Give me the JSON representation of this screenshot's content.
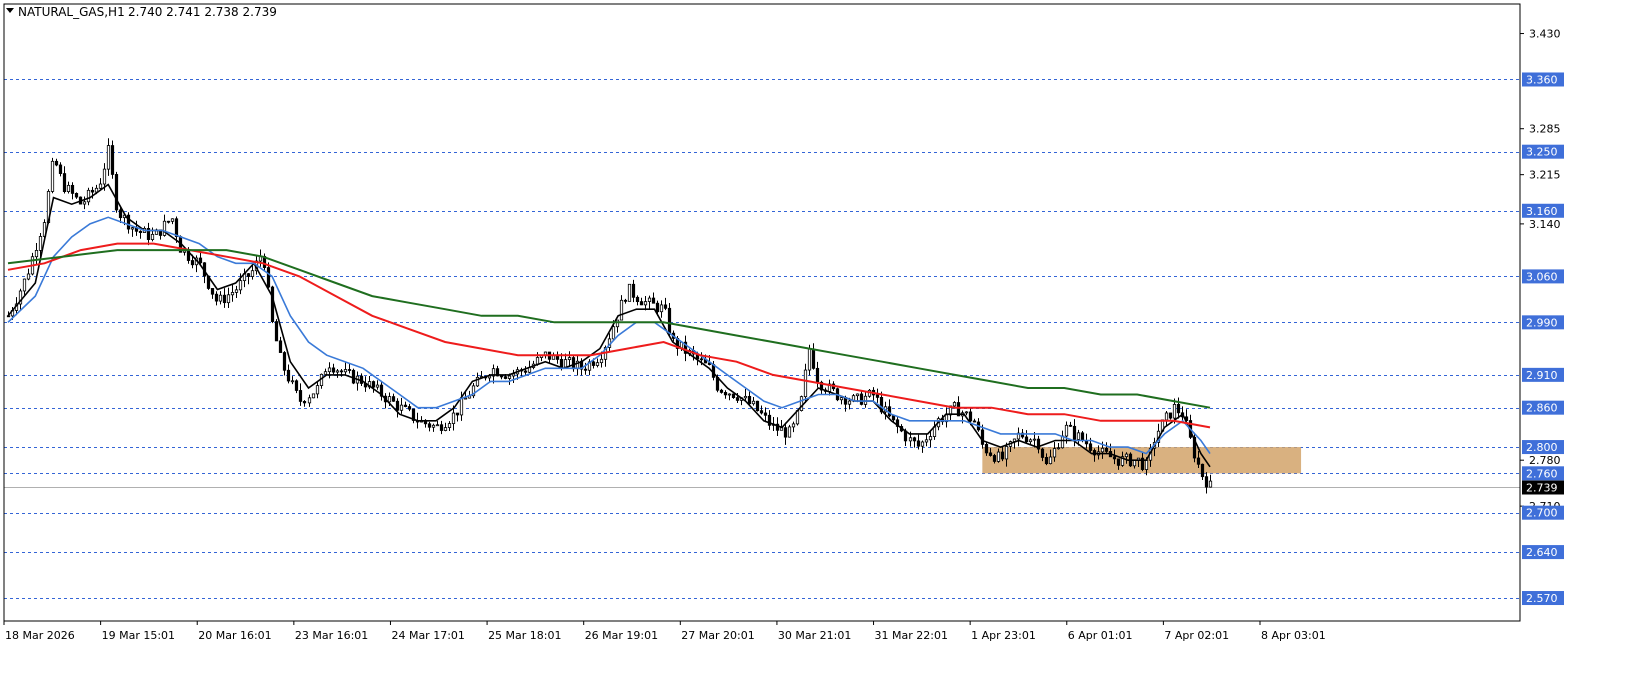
{
  "header": {
    "symbol": "NATURAL_GAS,H1",
    "ohlc": "2.740 2.741 2.738 2.739"
  },
  "colors": {
    "background": "#ffffff",
    "frame": "#000000",
    "candle_body": "#000000",
    "level_line": "#3465d6",
    "level_label_bg": "#3f6fd9",
    "current_label_bg": "#000000",
    "current_line": "#b0b0b0",
    "zone_fill": "#d2a36a",
    "ma_fast": "#000000",
    "ma_mid": "#3a7ad8",
    "ma_slow": "#ee1c1c",
    "ma_long": "#1f6e1f"
  },
  "chart_data": {
    "type": "candlestick",
    "symbol": "NATURAL_GAS",
    "timeframe": "H1",
    "ylim": [
      2.535,
      3.475
    ],
    "x_labels": [
      "18 Mar 2026",
      "19 Mar 15:01",
      "20 Mar 16:01",
      "23 Mar 16:01",
      "24 Mar 17:01",
      "25 Mar 18:01",
      "26 Mar 19:01",
      "27 Mar 20:01",
      "30 Mar 21:01",
      "31 Mar 22:01",
      "1 Apr 23:01",
      "6 Apr 01:01",
      "7 Apr 02:01",
      "8 Apr 03:01"
    ],
    "y_ticks": [
      3.43,
      3.285,
      3.215,
      3.14,
      2.78,
      2.71
    ],
    "level_lines": [
      3.36,
      3.25,
      3.16,
      3.06,
      2.99,
      2.91,
      2.86,
      2.8,
      2.76,
      2.7,
      2.64,
      2.57
    ],
    "current_price": 2.739,
    "zone": {
      "x_start": 107,
      "x_end": 142,
      "y_low": 2.76,
      "y_high": 2.8
    },
    "price_path": [
      [
        0,
        3.0
      ],
      [
        2,
        3.06
      ],
      [
        4,
        3.15
      ],
      [
        5,
        3.24
      ],
      [
        6,
        3.2
      ],
      [
        8,
        3.17
      ],
      [
        10,
        3.2
      ],
      [
        11,
        3.25
      ],
      [
        12,
        3.16
      ],
      [
        14,
        3.13
      ],
      [
        16,
        3.12
      ],
      [
        18,
        3.15
      ],
      [
        19,
        3.1
      ],
      [
        21,
        3.08
      ],
      [
        23,
        3.02
      ],
      [
        25,
        3.04
      ],
      [
        27,
        3.07
      ],
      [
        28,
        3.1
      ],
      [
        29,
        2.99
      ],
      [
        30,
        2.93
      ],
      [
        32,
        2.87
      ],
      [
        34,
        2.89
      ],
      [
        35,
        2.93
      ],
      [
        37,
        2.91
      ],
      [
        39,
        2.9
      ],
      [
        41,
        2.88
      ],
      [
        43,
        2.86
      ],
      [
        45,
        2.84
      ],
      [
        47,
        2.83
      ],
      [
        49,
        2.85
      ],
      [
        51,
        2.89
      ],
      [
        53,
        2.92
      ],
      [
        55,
        2.91
      ],
      [
        57,
        2.92
      ],
      [
        59,
        2.94
      ],
      [
        61,
        2.93
      ],
      [
        63,
        2.92
      ],
      [
        65,
        2.94
      ],
      [
        66,
        2.97
      ],
      [
        68,
        3.04
      ],
      [
        70,
        3.02
      ],
      [
        72,
        3.01
      ],
      [
        73,
        2.96
      ],
      [
        75,
        2.94
      ],
      [
        77,
        2.92
      ],
      [
        78,
        2.89
      ],
      [
        80,
        2.88
      ],
      [
        82,
        2.86
      ],
      [
        84,
        2.83
      ],
      [
        86,
        2.82
      ],
      [
        87,
        2.86
      ],
      [
        88,
        2.95
      ],
      [
        89,
        2.9
      ],
      [
        91,
        2.88
      ],
      [
        93,
        2.87
      ],
      [
        95,
        2.88
      ],
      [
        97,
        2.84
      ],
      [
        99,
        2.81
      ],
      [
        100,
        2.8
      ],
      [
        102,
        2.84
      ],
      [
        104,
        2.86
      ],
      [
        106,
        2.84
      ],
      [
        107,
        2.8
      ],
      [
        109,
        2.78
      ],
      [
        111,
        2.82
      ],
      [
        113,
        2.81
      ],
      [
        114,
        2.77
      ],
      [
        116,
        2.83
      ],
      [
        118,
        2.81
      ],
      [
        120,
        2.79
      ],
      [
        122,
        2.78
      ],
      [
        124,
        2.78
      ],
      [
        125,
        2.77
      ],
      [
        126,
        2.82
      ],
      [
        128,
        2.86
      ],
      [
        129,
        2.85
      ],
      [
        130,
        2.8
      ],
      [
        131,
        2.76
      ],
      [
        132,
        2.74
      ]
    ],
    "series": [
      {
        "name": "",
        "values": [
          [
            0,
            3.0
          ],
          [
            3,
            3.05
          ],
          [
            5,
            3.18
          ],
          [
            7,
            3.17
          ],
          [
            9,
            3.18
          ],
          [
            11,
            3.2
          ],
          [
            13,
            3.15
          ],
          [
            15,
            3.13
          ],
          [
            17,
            3.13
          ],
          [
            19,
            3.11
          ],
          [
            21,
            3.08
          ],
          [
            23,
            3.04
          ],
          [
            25,
            3.05
          ],
          [
            27,
            3.08
          ],
          [
            29,
            3.03
          ],
          [
            31,
            2.93
          ],
          [
            33,
            2.89
          ],
          [
            35,
            2.91
          ],
          [
            37,
            2.91
          ],
          [
            39,
            2.9
          ],
          [
            41,
            2.88
          ],
          [
            43,
            2.85
          ],
          [
            45,
            2.84
          ],
          [
            47,
            2.84
          ],
          [
            49,
            2.86
          ],
          [
            51,
            2.9
          ],
          [
            53,
            2.91
          ],
          [
            55,
            2.91
          ],
          [
            57,
            2.92
          ],
          [
            59,
            2.93
          ],
          [
            61,
            2.92
          ],
          [
            63,
            2.93
          ],
          [
            65,
            2.95
          ],
          [
            67,
            3.0
          ],
          [
            69,
            3.01
          ],
          [
            71,
            3.01
          ],
          [
            73,
            2.96
          ],
          [
            75,
            2.94
          ],
          [
            77,
            2.92
          ],
          [
            79,
            2.89
          ],
          [
            81,
            2.87
          ],
          [
            83,
            2.84
          ],
          [
            85,
            2.83
          ],
          [
            87,
            2.86
          ],
          [
            89,
            2.89
          ],
          [
            91,
            2.88
          ],
          [
            93,
            2.87
          ],
          [
            95,
            2.87
          ],
          [
            97,
            2.84
          ],
          [
            99,
            2.82
          ],
          [
            101,
            2.82
          ],
          [
            103,
            2.85
          ],
          [
            105,
            2.85
          ],
          [
            107,
            2.81
          ],
          [
            109,
            2.8
          ],
          [
            111,
            2.81
          ],
          [
            113,
            2.8
          ],
          [
            115,
            2.81
          ],
          [
            117,
            2.81
          ],
          [
            119,
            2.79
          ],
          [
            121,
            2.79
          ],
          [
            123,
            2.78
          ],
          [
            125,
            2.78
          ],
          [
            127,
            2.83
          ],
          [
            129,
            2.85
          ],
          [
            131,
            2.79
          ],
          [
            132,
            2.77
          ]
        ]
      },
      {
        "name": "",
        "values": [
          [
            0,
            2.99
          ],
          [
            3,
            3.03
          ],
          [
            5,
            3.09
          ],
          [
            7,
            3.12
          ],
          [
            9,
            3.14
          ],
          [
            11,
            3.15
          ],
          [
            13,
            3.14
          ],
          [
            15,
            3.13
          ],
          [
            17,
            3.13
          ],
          [
            19,
            3.12
          ],
          [
            21,
            3.11
          ],
          [
            23,
            3.09
          ],
          [
            25,
            3.08
          ],
          [
            27,
            3.08
          ],
          [
            29,
            3.06
          ],
          [
            31,
            3.0
          ],
          [
            33,
            2.96
          ],
          [
            35,
            2.94
          ],
          [
            37,
            2.93
          ],
          [
            39,
            2.92
          ],
          [
            41,
            2.9
          ],
          [
            43,
            2.88
          ],
          [
            45,
            2.86
          ],
          [
            47,
            2.86
          ],
          [
            49,
            2.87
          ],
          [
            51,
            2.88
          ],
          [
            53,
            2.9
          ],
          [
            55,
            2.9
          ],
          [
            57,
            2.91
          ],
          [
            59,
            2.92
          ],
          [
            61,
            2.92
          ],
          [
            63,
            2.92
          ],
          [
            65,
            2.94
          ],
          [
            67,
            2.97
          ],
          [
            69,
            2.99
          ],
          [
            71,
            2.99
          ],
          [
            73,
            2.97
          ],
          [
            75,
            2.95
          ],
          [
            77,
            2.93
          ],
          [
            79,
            2.91
          ],
          [
            81,
            2.89
          ],
          [
            83,
            2.87
          ],
          [
            85,
            2.86
          ],
          [
            87,
            2.87
          ],
          [
            89,
            2.88
          ],
          [
            91,
            2.88
          ],
          [
            93,
            2.87
          ],
          [
            95,
            2.87
          ],
          [
            97,
            2.85
          ],
          [
            99,
            2.84
          ],
          [
            101,
            2.84
          ],
          [
            103,
            2.84
          ],
          [
            105,
            2.84
          ],
          [
            107,
            2.83
          ],
          [
            109,
            2.82
          ],
          [
            111,
            2.82
          ],
          [
            113,
            2.82
          ],
          [
            115,
            2.82
          ],
          [
            117,
            2.81
          ],
          [
            119,
            2.81
          ],
          [
            121,
            2.8
          ],
          [
            123,
            2.8
          ],
          [
            125,
            2.79
          ],
          [
            127,
            2.82
          ],
          [
            129,
            2.84
          ],
          [
            131,
            2.81
          ],
          [
            132,
            2.79
          ]
        ]
      },
      {
        "name": "",
        "values": [
          [
            0,
            3.07
          ],
          [
            4,
            3.08
          ],
          [
            8,
            3.1
          ],
          [
            12,
            3.11
          ],
          [
            16,
            3.11
          ],
          [
            20,
            3.1
          ],
          [
            24,
            3.09
          ],
          [
            28,
            3.08
          ],
          [
            32,
            3.06
          ],
          [
            36,
            3.03
          ],
          [
            40,
            3.0
          ],
          [
            44,
            2.98
          ],
          [
            48,
            2.96
          ],
          [
            52,
            2.95
          ],
          [
            56,
            2.94
          ],
          [
            60,
            2.94
          ],
          [
            64,
            2.94
          ],
          [
            68,
            2.95
          ],
          [
            72,
            2.96
          ],
          [
            76,
            2.94
          ],
          [
            80,
            2.93
          ],
          [
            84,
            2.91
          ],
          [
            88,
            2.9
          ],
          [
            92,
            2.89
          ],
          [
            96,
            2.88
          ],
          [
            100,
            2.87
          ],
          [
            104,
            2.86
          ],
          [
            108,
            2.86
          ],
          [
            112,
            2.85
          ],
          [
            116,
            2.85
          ],
          [
            120,
            2.84
          ],
          [
            124,
            2.84
          ],
          [
            128,
            2.84
          ],
          [
            132,
            2.83
          ]
        ]
      },
      {
        "name": "",
        "values": [
          [
            0,
            3.08
          ],
          [
            6,
            3.09
          ],
          [
            12,
            3.1
          ],
          [
            18,
            3.1
          ],
          [
            24,
            3.1
          ],
          [
            28,
            3.09
          ],
          [
            32,
            3.07
          ],
          [
            36,
            3.05
          ],
          [
            40,
            3.03
          ],
          [
            44,
            3.02
          ],
          [
            48,
            3.01
          ],
          [
            52,
            3.0
          ],
          [
            56,
            3.0
          ],
          [
            60,
            2.99
          ],
          [
            64,
            2.99
          ],
          [
            68,
            2.99
          ],
          [
            72,
            2.99
          ],
          [
            76,
            2.98
          ],
          [
            80,
            2.97
          ],
          [
            84,
            2.96
          ],
          [
            88,
            2.95
          ],
          [
            92,
            2.94
          ],
          [
            96,
            2.93
          ],
          [
            100,
            2.92
          ],
          [
            104,
            2.91
          ],
          [
            108,
            2.9
          ],
          [
            112,
            2.89
          ],
          [
            116,
            2.89
          ],
          [
            120,
            2.88
          ],
          [
            124,
            2.88
          ],
          [
            128,
            2.87
          ],
          [
            132,
            2.86
          ]
        ]
      }
    ]
  }
}
